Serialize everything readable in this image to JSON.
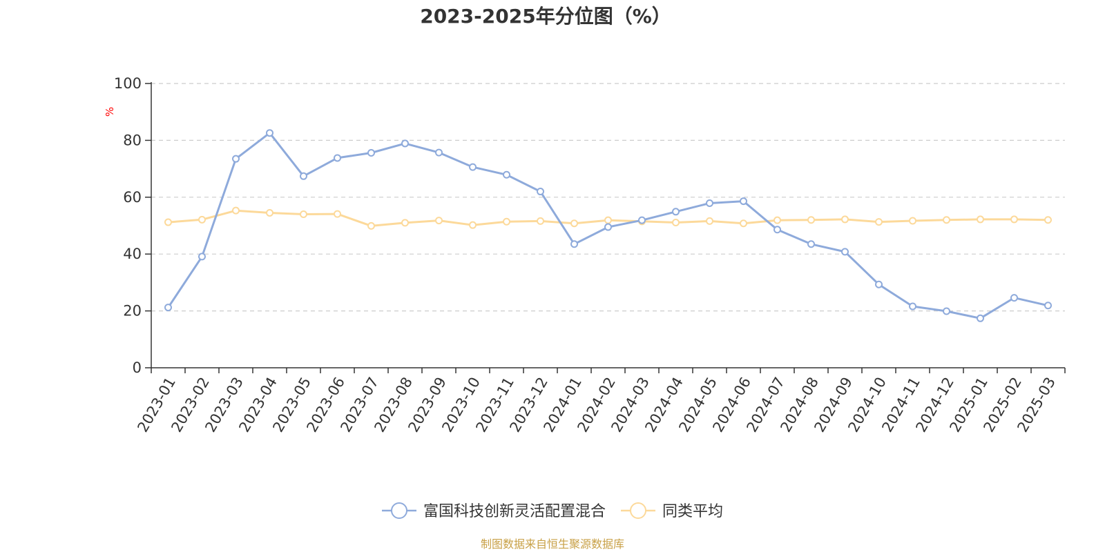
{
  "chart_data": {
    "type": "line",
    "title": "2023-2025年分位图（%）",
    "xlabel": "",
    "ylabel": "%",
    "ylim": [
      0,
      100
    ],
    "yticks": [
      0,
      20,
      40,
      60,
      80,
      100
    ],
    "grid": true,
    "legend_position": "bottom",
    "categories": [
      "2023-01",
      "2023-02",
      "2023-03",
      "2023-04",
      "2023-05",
      "2023-06",
      "2023-07",
      "2023-08",
      "2023-09",
      "2023-10",
      "2023-11",
      "2023-12",
      "2024-01",
      "2024-02",
      "2024-03",
      "2024-04",
      "2024-05",
      "2024-06",
      "2024-07",
      "2024-08",
      "2024-09",
      "2024-10",
      "2024-11",
      "2024-12",
      "2025-01",
      "2025-02",
      "2025-03"
    ],
    "series": [
      {
        "name": "富国科技创新灵活配置混合",
        "color": "#8eaadb",
        "values": [
          21.2,
          39.1,
          73.5,
          82.6,
          67.4,
          73.8,
          75.6,
          78.9,
          75.7,
          70.6,
          67.9,
          62.0,
          43.5,
          49.5,
          51.9,
          54.9,
          57.9,
          58.6,
          48.6,
          43.5,
          40.8,
          29.3,
          21.6,
          19.9,
          17.4,
          24.6,
          21.9
        ]
      },
      {
        "name": "同类平均",
        "color": "#fcd99a",
        "values": [
          51.2,
          52.1,
          55.3,
          54.5,
          54.0,
          54.1,
          49.9,
          51.0,
          51.8,
          50.2,
          51.4,
          51.6,
          50.8,
          51.9,
          51.5,
          51.1,
          51.6,
          50.8,
          51.9,
          52.0,
          52.2,
          51.3,
          51.7,
          52.0,
          52.2,
          52.2,
          52.0
        ]
      }
    ]
  },
  "colors": {
    "axis": "#333333",
    "grid": "#cccccc",
    "unit_label": "#ff0000",
    "source": "#c8a046"
  },
  "footer": {
    "source": "制图数据来自恒生聚源数据库"
  }
}
